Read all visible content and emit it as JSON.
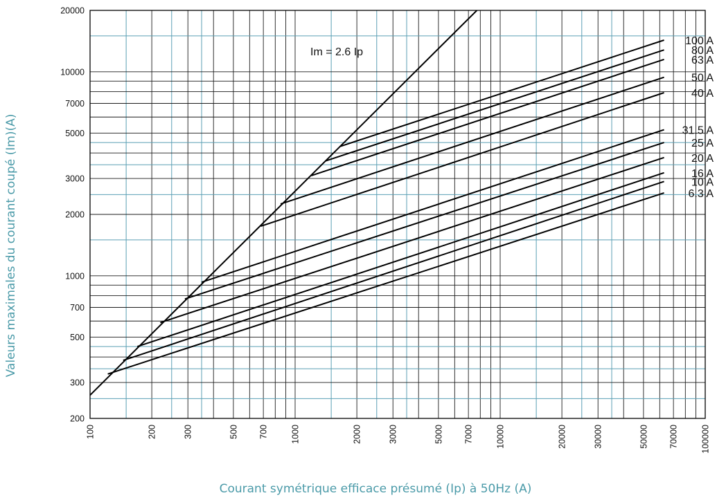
{
  "chart_data": {
    "type": "line",
    "title": "",
    "xlabel": "Courant symétrique efficace présumé (Ip) à 50Hz (A)",
    "ylabel": "Valeurs maximales du courant coupé (Im)(A)",
    "x_scale": "log",
    "y_scale": "log",
    "xlim": [
      100,
      100000
    ],
    "ylim": [
      200,
      20000
    ],
    "x_ticks": [
      "100",
      "200",
      "300",
      "500",
      "700",
      "1000",
      "2000",
      "3000",
      "5000",
      "7000",
      "10000",
      "20000",
      "30000",
      "50000",
      "70000",
      "100000"
    ],
    "y_ticks": [
      "200",
      "300",
      "500",
      "700",
      "1000",
      "2000",
      "3000",
      "5000",
      "7000",
      "10000",
      "20000"
    ],
    "grid": true,
    "annotation": {
      "text": "Im = 2.6 Ip",
      "x": 1500,
      "y": 12500
    },
    "reference_line": {
      "name": "Im = 2.6 Ip",
      "x": [
        100,
        7700
      ],
      "y": [
        260,
        20000
      ]
    },
    "series": [
      {
        "name": "100 A",
        "x": [
          1650,
          63000
        ],
        "y": [
          4300,
          14300
        ]
      },
      {
        "name": "80 A",
        "x": [
          1400,
          63000
        ],
        "y": [
          3650,
          12800
        ]
      },
      {
        "name": "63 A",
        "x": [
          1200,
          63000
        ],
        "y": [
          3100,
          11500
        ]
      },
      {
        "name": "50 A",
        "x": [
          850,
          63000
        ],
        "y": [
          2250,
          9400
        ]
      },
      {
        "name": "40 A",
        "x": [
          680,
          63000
        ],
        "y": [
          1750,
          7900
        ]
      },
      {
        "name": "31.5 A",
        "x": [
          350,
          63000
        ],
        "y": [
          930,
          5200
        ]
      },
      {
        "name": "25 A",
        "x": [
          290,
          63000
        ],
        "y": [
          770,
          4500
        ]
      },
      {
        "name": "20 A",
        "x": [
          220,
          63000
        ],
        "y": [
          590,
          3800
        ]
      },
      {
        "name": "16 A",
        "x": [
          170,
          63000
        ],
        "y": [
          450,
          3200
        ]
      },
      {
        "name": "10 A",
        "x": [
          145,
          63000
        ],
        "y": [
          385,
          2900
        ]
      },
      {
        "name": "6.3 A",
        "x": [
          122,
          63000
        ],
        "y": [
          330,
          2550
        ]
      }
    ]
  }
}
